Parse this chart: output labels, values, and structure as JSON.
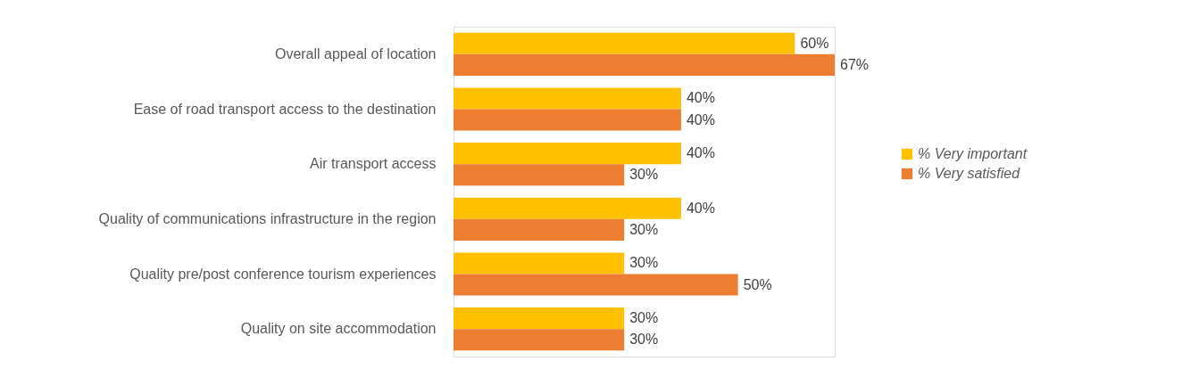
{
  "chart_data": {
    "type": "bar",
    "orientation": "horizontal",
    "legend": "right",
    "categories": [
      "Overall appeal of location",
      "Ease of road transport access to the destination",
      "Air transport access",
      "Quality of communications infrastructure in the region",
      "Quality pre/post conference tourism experiences",
      "Quality on site accommodation"
    ],
    "series": [
      {
        "name": "% Very important",
        "color": "#ffc000",
        "values": [
          60,
          40,
          40,
          40,
          30,
          30
        ],
        "value_labels": [
          "60%",
          "40%",
          "40%",
          "40%",
          "30%",
          "30%"
        ]
      },
      {
        "name": "% Very satisfied",
        "color": "#ed7d31",
        "values": [
          67,
          40,
          30,
          30,
          50,
          30
        ],
        "value_labels": [
          "67%",
          "40%",
          "30%",
          "30%",
          "50%",
          "30%"
        ]
      }
    ]
  }
}
